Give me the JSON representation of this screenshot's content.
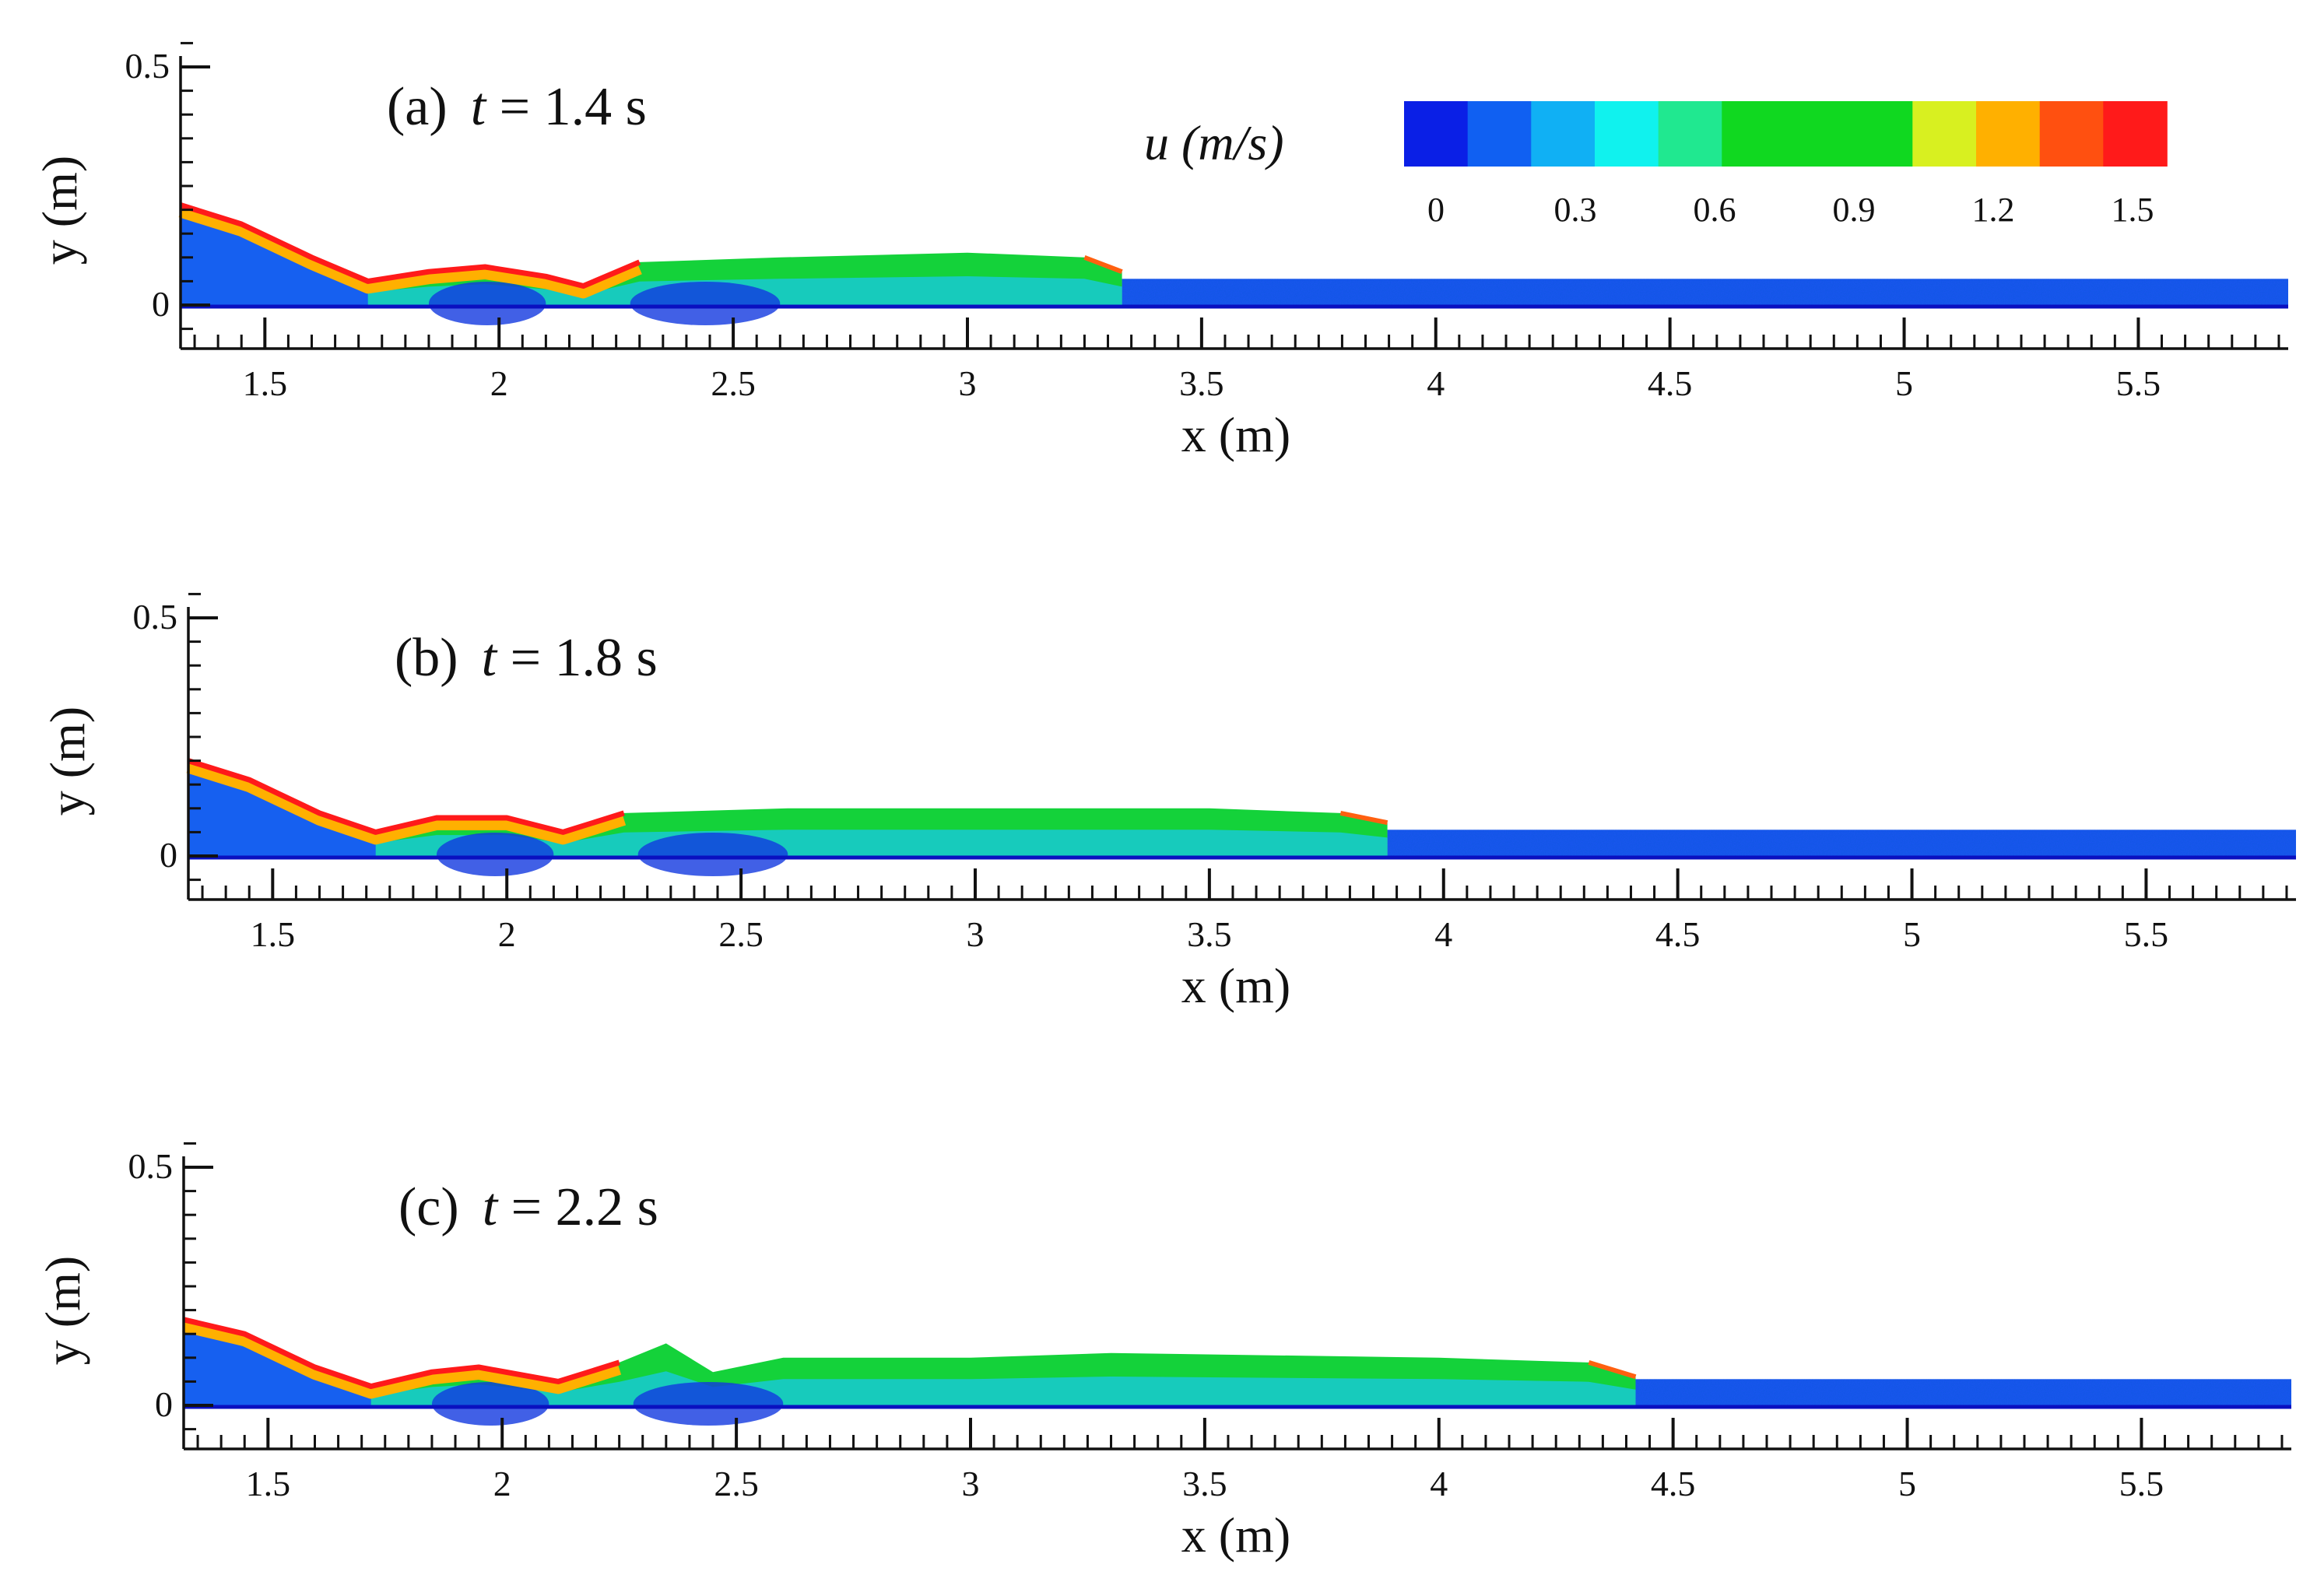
{
  "chart_data": [
    {
      "type": "heatmap",
      "panel_label": "(a)",
      "time_var": "t",
      "time_text": " = 1.4 s",
      "xlabel": "x (m)",
      "ylabel": "y (m)",
      "xlim": [
        1.32,
        5.82
      ],
      "ylim": [
        -0.1,
        0.56
      ],
      "x_ticks": [
        "1.5",
        "2",
        "2.5",
        "3",
        "3.5",
        "4",
        "4.5",
        "5",
        "5.5"
      ],
      "y_ticks": [
        "0.5",
        "0"
      ],
      "front_x": 3.33,
      "flow_profile": [
        [
          1.32,
          0.21
        ],
        [
          1.45,
          0.17
        ],
        [
          1.6,
          0.1
        ],
        [
          1.72,
          0.05
        ],
        [
          1.85,
          0.07
        ],
        [
          1.97,
          0.08
        ],
        [
          2.1,
          0.06
        ],
        [
          2.18,
          0.04
        ],
        [
          2.3,
          0.09
        ],
        [
          2.6,
          0.1
        ],
        [
          3.0,
          0.11
        ],
        [
          3.25,
          0.1
        ],
        [
          3.33,
          0.07
        ]
      ],
      "still_water_depth": 0.055
    },
    {
      "type": "heatmap",
      "panel_label": "(b)",
      "time_var": "t",
      "time_text": " = 1.8 s",
      "xlabel": "x (m)",
      "ylabel": "y (m)",
      "xlim": [
        1.32,
        5.82
      ],
      "ylim": [
        -0.1,
        0.56
      ],
      "x_ticks": [
        "1.5",
        "2",
        "2.5",
        "3",
        "3.5",
        "4",
        "4.5",
        "5",
        "5.5"
      ],
      "y_ticks": [
        "0.5",
        "0"
      ],
      "front_x": 3.88,
      "flow_profile": [
        [
          1.32,
          0.2
        ],
        [
          1.45,
          0.16
        ],
        [
          1.6,
          0.09
        ],
        [
          1.72,
          0.05
        ],
        [
          1.85,
          0.08
        ],
        [
          2.0,
          0.08
        ],
        [
          2.12,
          0.05
        ],
        [
          2.25,
          0.09
        ],
        [
          2.6,
          0.1
        ],
        [
          3.0,
          0.1
        ],
        [
          3.5,
          0.1
        ],
        [
          3.78,
          0.09
        ],
        [
          3.88,
          0.07
        ]
      ],
      "still_water_depth": 0.055
    },
    {
      "type": "heatmap",
      "panel_label": "(c)",
      "time_var": "t",
      "time_text": " = 2.2 s",
      "xlabel": "x (m)",
      "ylabel": "y (m)",
      "xlim": [
        1.32,
        5.82
      ],
      "ylim": [
        -0.1,
        0.56
      ],
      "x_ticks": [
        "1.5",
        "2",
        "2.5",
        "3",
        "3.5",
        "4",
        "4.5",
        "5",
        "5.5"
      ],
      "y_ticks": [
        "0.5",
        "0"
      ],
      "front_x": 4.42,
      "flow_profile": [
        [
          1.32,
          0.18
        ],
        [
          1.45,
          0.15
        ],
        [
          1.6,
          0.08
        ],
        [
          1.72,
          0.04
        ],
        [
          1.85,
          0.07
        ],
        [
          1.95,
          0.08
        ],
        [
          2.12,
          0.05
        ],
        [
          2.25,
          0.09
        ],
        [
          2.35,
          0.13
        ],
        [
          2.45,
          0.07
        ],
        [
          2.6,
          0.1
        ],
        [
          3.0,
          0.1
        ],
        [
          3.3,
          0.11
        ],
        [
          4.0,
          0.1
        ],
        [
          4.32,
          0.09
        ],
        [
          4.42,
          0.06
        ]
      ],
      "still_water_depth": 0.055
    }
  ],
  "colorbar": {
    "var": "u",
    "unit_text": " (m/s)",
    "ticks": [
      "0",
      "0.3",
      "0.6",
      "0.9",
      "1.2",
      "1.5"
    ],
    "colors": [
      "#0a1fe6",
      "#1060f2",
      "#10b0f4",
      "#10f2ee",
      "#20e890",
      "#10d820",
      "#10d820",
      "#10d820",
      "#d8f020",
      "#ffb000",
      "#ff5010",
      "#ff1a1a"
    ]
  }
}
